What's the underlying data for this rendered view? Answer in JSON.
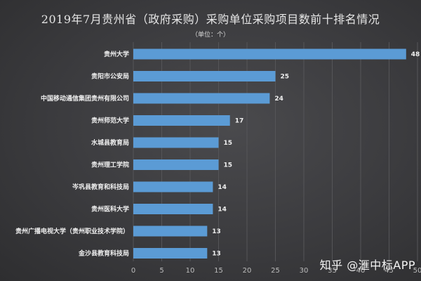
{
  "chart_data": {
    "type": "bar",
    "orientation": "horizontal",
    "title": "2019年7月贵州省（政府采购）采购单位采购项目数前十排名情况",
    "subtitle": "（单位：个）",
    "categories": [
      "贵州大学",
      "贵阳市公安局",
      "中国移动通信集团贵州有限公司",
      "贵州师范大学",
      "水城县教育局",
      "贵州理工学院",
      "岑巩县教育和科技局",
      "贵州医科大学",
      "贵州广播电视大学（贵州职业技术学院）",
      "金沙县教育科技局"
    ],
    "values": [
      48,
      25,
      24,
      17,
      15,
      15,
      14,
      14,
      13,
      13
    ],
    "xlim": [
      0,
      50
    ],
    "x_ticks": [
      0,
      5,
      10,
      15,
      20,
      25,
      30,
      35,
      40,
      45,
      50
    ],
    "grid": true,
    "bar_color": "#5b9bd5",
    "grid_color": "#555558"
  },
  "watermark": "知乎 @滙中标APP"
}
